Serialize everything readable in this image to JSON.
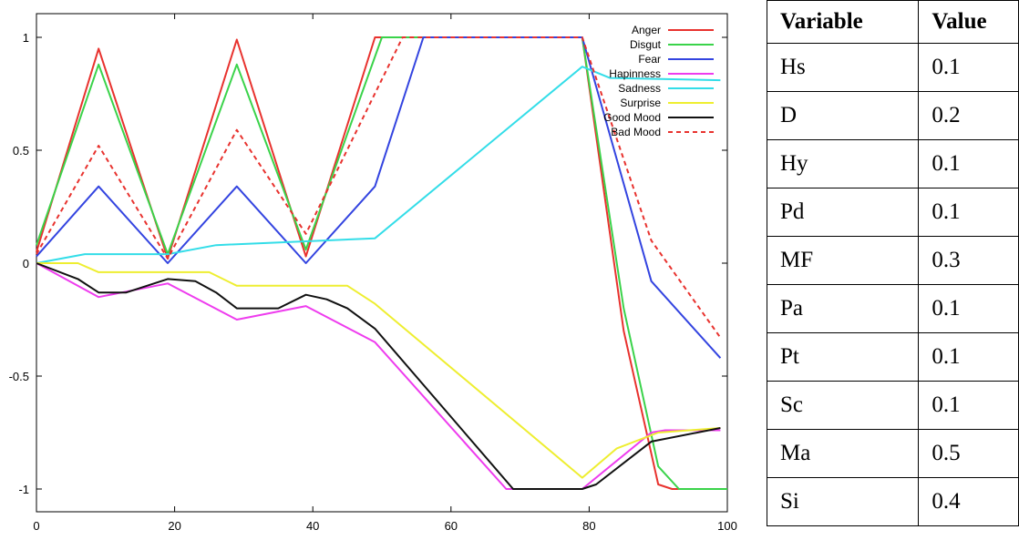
{
  "chart_data": {
    "type": "line",
    "title": "",
    "xlabel": "",
    "ylabel": "",
    "xlim": [
      0,
      100
    ],
    "ylim": [
      -1.1,
      1.1
    ],
    "xticks": [
      "0",
      "20",
      "40",
      "60",
      "80",
      "100"
    ],
    "yticks": [
      "1",
      "0.5",
      "0",
      "-0.5",
      "-1"
    ],
    "grid": false,
    "legend_position": "top-right",
    "series": [
      {
        "name": "Anger",
        "color": "#e8322e",
        "dash": "solid",
        "x": [
          0,
          9,
          19,
          29,
          39,
          49,
          50,
          79,
          85,
          90,
          92,
          100
        ],
        "y": [
          0.05,
          0.95,
          0.02,
          0.99,
          0.03,
          1.0,
          1.0,
          1.0,
          -0.3,
          -0.98,
          -1.0,
          -1.0
        ]
      },
      {
        "name": "Disgut",
        "color": "#3ad34a",
        "dash": "solid",
        "x": [
          0,
          9,
          19,
          29,
          39,
          50,
          79,
          85,
          90,
          93,
          100
        ],
        "y": [
          0.08,
          0.88,
          0.04,
          0.88,
          0.06,
          1.0,
          1.0,
          -0.2,
          -0.9,
          -1.0,
          -1.0
        ]
      },
      {
        "name": "Fear",
        "color": "#3344e0",
        "dash": "solid",
        "x": [
          0,
          9,
          19,
          29,
          39,
          49,
          56,
          79,
          89,
          99
        ],
        "y": [
          0.03,
          0.34,
          0.0,
          0.34,
          0.0,
          0.34,
          1.0,
          1.0,
          -0.08,
          -0.42
        ]
      },
      {
        "name": "Hapinness",
        "color": "#ee3cee",
        "dash": "solid",
        "x": [
          0,
          9,
          19,
          29,
          39,
          49,
          68,
          79,
          89,
          91,
          99
        ],
        "y": [
          0.0,
          -0.15,
          -0.09,
          -0.25,
          -0.19,
          -0.35,
          -1.0,
          -1.0,
          -0.75,
          -0.74,
          -0.74
        ]
      },
      {
        "name": "Sadness",
        "color": "#33dde8",
        "dash": "solid",
        "x": [
          0,
          7,
          19,
          26,
          49,
          79,
          83,
          99
        ],
        "y": [
          0.0,
          0.04,
          0.04,
          0.08,
          0.11,
          0.87,
          0.82,
          0.81
        ]
      },
      {
        "name": "Surprise",
        "color": "#eeee30",
        "dash": "solid",
        "x": [
          0,
          6,
          9,
          25,
          29,
          45,
          49,
          79,
          84,
          90,
          99
        ],
        "y": [
          0.0,
          0.0,
          -0.04,
          -0.04,
          -0.1,
          -0.1,
          -0.18,
          -0.95,
          -0.82,
          -0.75,
          -0.73
        ]
      },
      {
        "name": "Good Mood",
        "color": "#111111",
        "dash": "solid",
        "x": [
          0,
          6,
          9,
          13,
          19,
          23,
          26,
          29,
          35,
          39,
          42,
          45,
          49,
          69,
          79,
          81,
          89,
          99
        ],
        "y": [
          0.0,
          -0.07,
          -0.13,
          -0.13,
          -0.07,
          -0.08,
          -0.13,
          -0.2,
          -0.2,
          -0.14,
          -0.16,
          -0.2,
          -0.29,
          -1.0,
          -1.0,
          -0.98,
          -0.79,
          -0.73
        ]
      },
      {
        "name": "Bad Mood",
        "color": "#e8322e",
        "dash": "dashed",
        "x": [
          0,
          9,
          19,
          29,
          39,
          53,
          79,
          89,
          99
        ],
        "y": [
          0.04,
          0.52,
          0.02,
          0.59,
          0.13,
          1.0,
          1.0,
          0.1,
          -0.33
        ]
      }
    ]
  },
  "table": {
    "headers": [
      "Variable",
      "Value"
    ],
    "rows": [
      [
        "Hs",
        "0.1"
      ],
      [
        "D",
        "0.2"
      ],
      [
        "Hy",
        "0.1"
      ],
      [
        "Pd",
        "0.1"
      ],
      [
        "MF",
        "0.3"
      ],
      [
        "Pa",
        "0.1"
      ],
      [
        "Pt",
        "0.1"
      ],
      [
        "Sc",
        "0.1"
      ],
      [
        "Ma",
        "0.5"
      ],
      [
        "Si",
        "0.4"
      ]
    ]
  }
}
